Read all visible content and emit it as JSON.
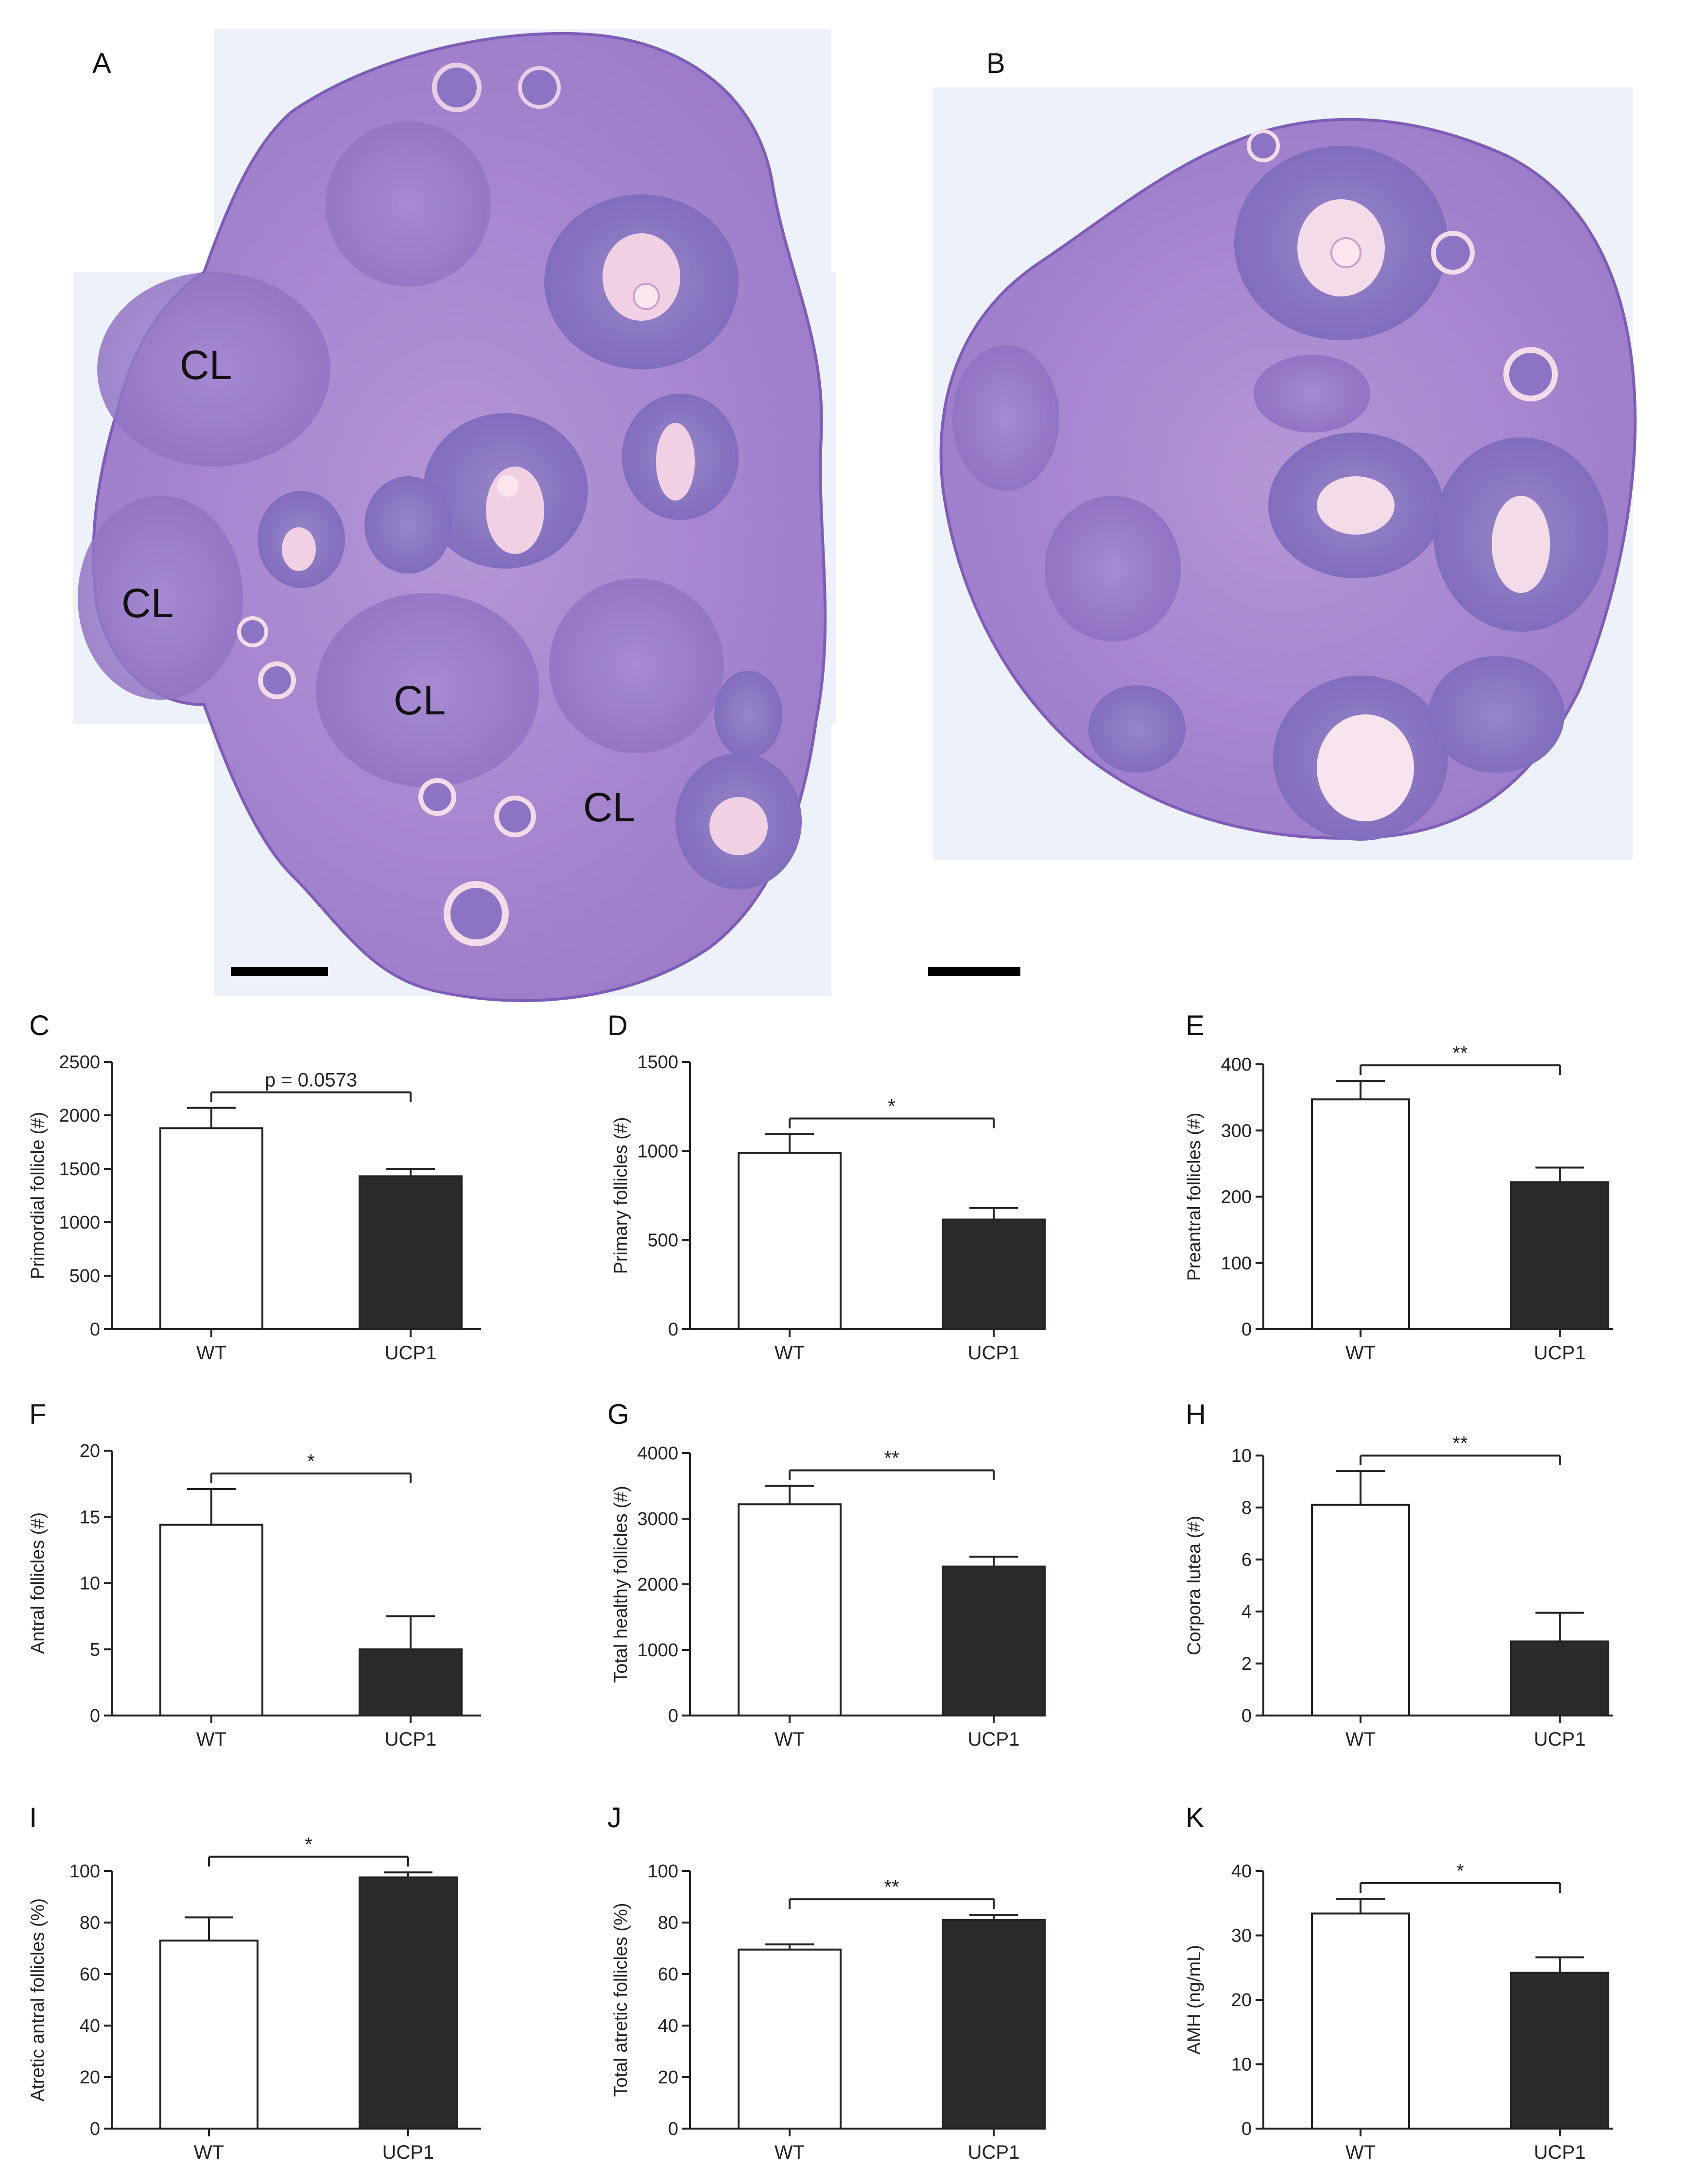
{
  "histology": {
    "panel_a": {
      "letter": "A",
      "labels": [
        "CL",
        "CL",
        "CL",
        "CL"
      ]
    },
    "panel_b": {
      "letter": "B"
    },
    "colors": {
      "tissue": "#9f7fcb",
      "stroma": "#c9a7dd",
      "lumen": "#f3d3e6",
      "background": "#eef2fb"
    }
  },
  "colors": {
    "wt": "#ffffff",
    "ucp1": "#2a2c2a",
    "stroke": "#222222"
  },
  "chart_data": [
    {
      "panel": "C",
      "type": "bar",
      "categories": [
        "WT",
        "UCP1"
      ],
      "values": [
        1880,
        1430
      ],
      "errors": [
        190,
        70
      ],
      "ylabel": "Primordial follicle (#)",
      "ylim": [
        0,
        2500
      ],
      "yticks": [
        0,
        500,
        1000,
        1500,
        2000,
        2500
      ],
      "significance": "p = 0.0573"
    },
    {
      "panel": "D",
      "type": "bar",
      "categories": [
        "WT",
        "UCP1"
      ],
      "values": [
        990,
        615
      ],
      "errors": [
        105,
        65
      ],
      "ylabel": "Primary follicles (#)",
      "ylim": [
        0,
        1500
      ],
      "yticks": [
        0,
        500,
        1000,
        1500
      ],
      "significance": "*"
    },
    {
      "panel": "E",
      "type": "bar",
      "categories": [
        "WT",
        "UCP1"
      ],
      "values": [
        347,
        222
      ],
      "errors": [
        28,
        22
      ],
      "ylabel": "Preantral follicles (#)",
      "ylim": [
        0,
        400
      ],
      "yticks": [
        0,
        100,
        200,
        300,
        400
      ],
      "significance": "**"
    },
    {
      "panel": "F",
      "type": "bar",
      "categories": [
        "WT",
        "UCP1"
      ],
      "values": [
        14.4,
        5.0
      ],
      "errors": [
        2.7,
        2.5
      ],
      "ylabel": "Antral follicles (#)",
      "ylim": [
        0,
        20
      ],
      "yticks": [
        0,
        5,
        10,
        15,
        20
      ],
      "significance": "*"
    },
    {
      "panel": "G",
      "type": "bar",
      "categories": [
        "WT",
        "UCP1"
      ],
      "values": [
        3220,
        2270
      ],
      "errors": [
        280,
        150
      ],
      "ylabel": "Total healthy follicles (#)",
      "ylim": [
        0,
        4000
      ],
      "yticks": [
        0,
        1000,
        2000,
        3000,
        4000
      ],
      "significance": "**"
    },
    {
      "panel": "H",
      "type": "bar",
      "categories": [
        "WT",
        "UCP1"
      ],
      "values": [
        8.1,
        2.85
      ],
      "errors": [
        1.3,
        1.1
      ],
      "ylabel": "Corpora lutea (#)",
      "ylim": [
        0,
        10
      ],
      "yticks": [
        0,
        2,
        4,
        6,
        8,
        10
      ],
      "significance": "**"
    },
    {
      "panel": "I",
      "type": "bar",
      "categories": [
        "WT",
        "UCP1"
      ],
      "values": [
        73,
        97.5
      ],
      "errors": [
        9,
        2
      ],
      "ylabel": "Atretic antral follicles (%)",
      "ylim": [
        0,
        100
      ],
      "yticks": [
        0,
        20,
        40,
        60,
        80,
        100
      ],
      "significance": "*"
    },
    {
      "panel": "J",
      "type": "bar",
      "categories": [
        "WT",
        "UCP1"
      ],
      "values": [
        69.5,
        81
      ],
      "errors": [
        2,
        2
      ],
      "ylabel": "Total atretic follicles (%)",
      "ylim": [
        0,
        100
      ],
      "yticks": [
        0,
        20,
        40,
        60,
        80,
        100
      ],
      "significance": "**"
    },
    {
      "panel": "K",
      "type": "bar",
      "categories": [
        "WT",
        "UCP1"
      ],
      "values": [
        33.4,
        24.2
      ],
      "errors": [
        2.3,
        2.4
      ],
      "ylabel": "AMH (ng/mL)",
      "ylim": [
        0,
        40
      ],
      "yticks": [
        0,
        10,
        20,
        30,
        40
      ],
      "significance": "*"
    }
  ]
}
